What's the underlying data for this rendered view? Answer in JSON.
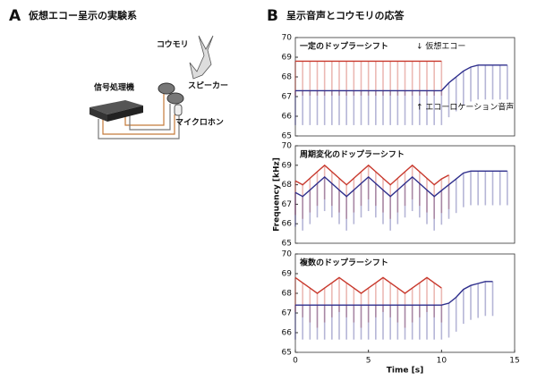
{
  "panel_a": {
    "letter": "A",
    "title": "仮想エコー呈示の実験系",
    "labels": {
      "bat": "コウモリ",
      "speaker": "スピーカー",
      "processor": "信号処理機",
      "microphone": "マイクロホン"
    }
  },
  "panel_b": {
    "letter": "B",
    "title": "呈示音声とコウモリの応答"
  },
  "chart_data": [
    {
      "type": "line",
      "title": "一定のドップラーシフト",
      "echo_label": "↓ 仮想エコー",
      "call_label": "↑ エコーロケーション音声",
      "x": [
        0,
        0.5,
        1,
        1.5,
        2,
        2.5,
        3,
        3.5,
        4,
        4.5,
        5,
        5.5,
        6,
        6.5,
        7,
        7.5,
        8,
        8.5,
        9,
        9.5,
        10,
        10.5,
        11,
        11.5,
        12,
        12.5,
        13,
        13.5,
        14,
        14.5,
        15
      ],
      "xlim": [
        0,
        15
      ],
      "ylim": [
        65,
        70
      ],
      "yticks": [
        65,
        66,
        67,
        68,
        69,
        70
      ],
      "series": [
        {
          "name": "仮想エコー",
          "color": "#c8382c",
          "values": [
            68.8,
            68.8,
            68.8,
            68.8,
            68.8,
            68.8,
            68.8,
            68.8,
            68.8,
            68.8,
            68.8,
            68.8,
            68.8,
            68.8,
            68.8,
            68.8,
            68.8,
            68.8,
            68.8,
            68.8,
            68.8,
            null,
            null,
            null,
            null,
            null,
            null,
            null,
            null,
            null,
            null
          ]
        },
        {
          "name": "エコーロケーション音声",
          "color": "#2e2e8c",
          "values": [
            67.3,
            67.3,
            67.3,
            67.3,
            67.3,
            67.3,
            67.3,
            67.3,
            67.3,
            67.3,
            67.3,
            67.3,
            67.3,
            67.3,
            67.3,
            67.3,
            67.3,
            67.3,
            67.3,
            67.3,
            67.3,
            67.7,
            68.0,
            68.3,
            68.5,
            68.6,
            68.6,
            68.6,
            68.6,
            68.6,
            null
          ]
        }
      ]
    },
    {
      "type": "line",
      "title": "周期変化のドップラーシフト",
      "ylabel": "Frequency [kHz]",
      "x": [
        0,
        0.5,
        1,
        1.5,
        2,
        2.5,
        3,
        3.5,
        4,
        4.5,
        5,
        5.5,
        6,
        6.5,
        7,
        7.5,
        8,
        8.5,
        9,
        9.5,
        10,
        10.5,
        11,
        11.5,
        12,
        12.5,
        13,
        13.5,
        14,
        14.5,
        15
      ],
      "xlim": [
        0,
        15
      ],
      "ylim": [
        65,
        70
      ],
      "yticks": [
        65,
        66,
        67,
        68,
        69,
        70
      ],
      "series": [
        {
          "name": "仮想エコー",
          "color": "#c8382c",
          "values": [
            68.2,
            68.0,
            68.33,
            68.67,
            69.0,
            68.67,
            68.33,
            68.0,
            68.33,
            68.67,
            69.0,
            68.67,
            68.33,
            68.0,
            68.33,
            68.67,
            69.0,
            68.67,
            68.33,
            68.0,
            68.3,
            68.5,
            null,
            null,
            null,
            null,
            null,
            null,
            null,
            null,
            null
          ]
        },
        {
          "name": "エコーロケーション音声",
          "color": "#2e2e8c",
          "values": [
            67.6,
            67.4,
            67.73,
            68.07,
            68.4,
            68.07,
            67.73,
            67.4,
            67.73,
            68.07,
            68.4,
            68.07,
            67.73,
            67.4,
            67.73,
            68.07,
            68.4,
            68.07,
            67.73,
            67.4,
            67.7,
            68.0,
            68.3,
            68.6,
            68.7,
            68.7,
            68.7,
            68.7,
            68.7,
            68.7,
            null
          ]
        }
      ]
    },
    {
      "type": "line",
      "title": "複数のドップラーシフト",
      "xlabel": "Time [s]",
      "x": [
        0,
        0.5,
        1,
        1.5,
        2,
        2.5,
        3,
        3.5,
        4,
        4.5,
        5,
        5.5,
        6,
        6.5,
        7,
        7.5,
        8,
        8.5,
        9,
        9.5,
        10,
        10.5,
        11,
        11.5,
        12,
        12.5,
        13,
        13.5,
        14,
        14.5,
        15
      ],
      "xlim": [
        0,
        15
      ],
      "xticks": [
        0,
        5,
        10,
        15
      ],
      "ylim": [
        65,
        70
      ],
      "yticks": [
        65,
        66,
        67,
        68,
        69,
        70
      ],
      "series": [
        {
          "name": "仮想エコー",
          "color": "#c8382c",
          "values": [
            68.8,
            68.53,
            68.27,
            68.0,
            68.27,
            68.53,
            68.8,
            68.53,
            68.27,
            68.0,
            68.27,
            68.53,
            68.8,
            68.53,
            68.27,
            68.0,
            68.27,
            68.53,
            68.8,
            68.53,
            68.27,
            null,
            null,
            null,
            null,
            null,
            null,
            null,
            null,
            null,
            null
          ]
        },
        {
          "name": "エコーロケーション音声",
          "color": "#2e2e8c",
          "values": [
            67.4,
            67.4,
            67.4,
            67.4,
            67.4,
            67.4,
            67.4,
            67.4,
            67.4,
            67.4,
            67.4,
            67.4,
            67.4,
            67.4,
            67.4,
            67.4,
            67.4,
            67.4,
            67.4,
            67.4,
            67.4,
            67.5,
            67.8,
            68.2,
            68.4,
            68.5,
            68.6,
            68.6,
            null,
            null,
            null
          ]
        }
      ]
    }
  ]
}
